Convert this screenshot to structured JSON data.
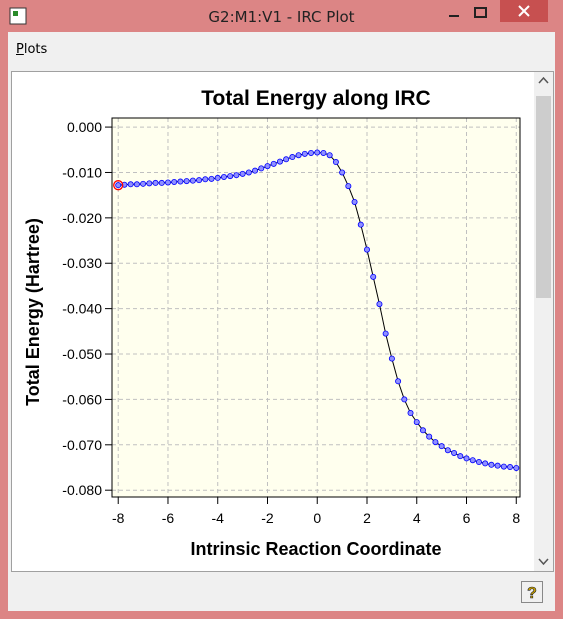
{
  "window": {
    "title": "G2:M1:V1 - IRC Plot",
    "menu": [
      "Plots"
    ]
  },
  "chart_data": {
    "type": "line",
    "title": "Total Energy along IRC",
    "x_label": "Intrinsic Reaction Coordinate",
    "y_label": "Total Energy (Hartree)",
    "xlim": [
      -8.25,
      8.15
    ],
    "ylim": [
      -0.0815,
      0.002
    ],
    "xticks": [
      -8,
      -6,
      -4,
      -2,
      0,
      2,
      4,
      6,
      8
    ],
    "yticks": [
      {
        "value": 0,
        "label": "0.000"
      },
      {
        "value": -0.01,
        "label": "-0.010"
      },
      {
        "value": -0.02,
        "label": "-0.020"
      },
      {
        "value": -0.03,
        "label": "-0.030"
      },
      {
        "value": -0.04,
        "label": "-0.040"
      },
      {
        "value": -0.05,
        "label": "-0.050"
      },
      {
        "value": -0.06,
        "label": "-0.060"
      },
      {
        "value": -0.07,
        "label": "-0.070"
      },
      {
        "value": -0.08,
        "label": "-0.080"
      }
    ],
    "grid": true,
    "x": [
      -8,
      -7.75,
      -7.5,
      -7.25,
      -7,
      -6.75,
      -6.5,
      -6.25,
      -6,
      -5.75,
      -5.5,
      -5.25,
      -5,
      -4.75,
      -4.5,
      -4.25,
      -4,
      -3.75,
      -3.5,
      -3.25,
      -3,
      -2.75,
      -2.5,
      -2.25,
      -2,
      -1.75,
      -1.5,
      -1.25,
      -1,
      -0.75,
      -0.5,
      -0.25,
      0,
      0.25,
      0.5,
      0.75,
      1,
      1.25,
      1.5,
      1.75,
      2,
      2.25,
      2.5,
      2.75,
      3,
      3.25,
      3.5,
      3.75,
      4,
      4.25,
      4.5,
      4.75,
      5,
      5.25,
      5.5,
      5.75,
      6,
      6.25,
      6.5,
      6.75,
      7,
      7.25,
      7.5,
      7.75,
      8
    ],
    "series": [
      {
        "name": "Total Energy",
        "color": "#0000ff",
        "line_color": "#000000",
        "values": [
          -0.0128,
          -0.0127,
          -0.0126,
          -0.0126,
          -0.0125,
          -0.0124,
          -0.0123,
          -0.0123,
          -0.0122,
          -0.0121,
          -0.012,
          -0.0119,
          -0.0118,
          -0.0117,
          -0.0115,
          -0.0114,
          -0.0112,
          -0.011,
          -0.0108,
          -0.0106,
          -0.0103,
          -0.01,
          -0.0096,
          -0.0091,
          -0.0086,
          -0.0081,
          -0.0076,
          -0.0071,
          -0.0066,
          -0.0062,
          -0.0059,
          -0.0057,
          -0.0056,
          -0.0057,
          -0.0062,
          -0.0077,
          -0.01,
          -0.013,
          -0.0165,
          -0.0215,
          -0.027,
          -0.033,
          -0.039,
          -0.0455,
          -0.051,
          -0.056,
          -0.06,
          -0.063,
          -0.065,
          -0.0668,
          -0.0682,
          -0.0694,
          -0.0703,
          -0.0712,
          -0.0718,
          -0.0725,
          -0.073,
          -0.0734,
          -0.0738,
          -0.0741,
          -0.0744,
          -0.0746,
          -0.0748,
          -0.0749,
          -0.0751
        ]
      }
    ],
    "highlight": {
      "index": 0,
      "color": "#ff0000"
    },
    "background": "#ffffee"
  }
}
